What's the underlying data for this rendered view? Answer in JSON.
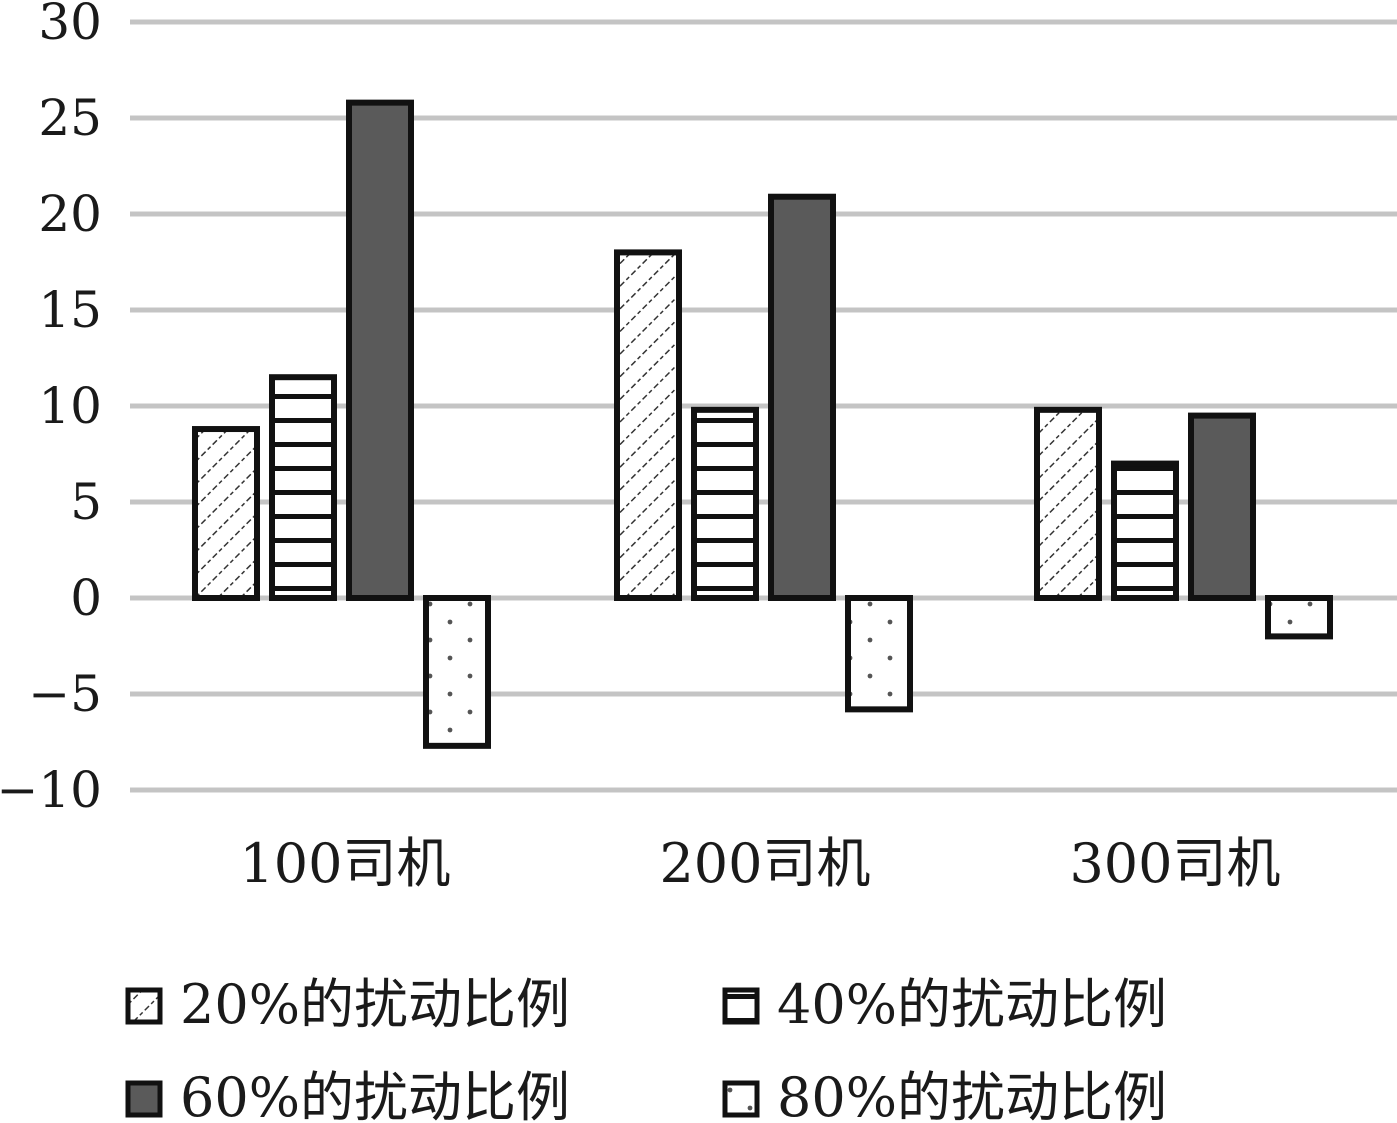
{
  "chart_data": {
    "type": "bar",
    "categories": [
      "100司机",
      "200司机",
      "300司机"
    ],
    "series": [
      {
        "name": "20%的扰动比例",
        "values": [
          8.8,
          18.0,
          9.8
        ],
        "pattern": "diagonal"
      },
      {
        "name": "40%的扰动比例",
        "values": [
          11.5,
          9.8,
          7.0
        ],
        "pattern": "horizontal"
      },
      {
        "name": "60%的扰动比例",
        "values": [
          25.8,
          20.9,
          9.5
        ],
        "pattern": "solid"
      },
      {
        "name": "80%的扰动比例",
        "values": [
          -7.7,
          -5.8,
          -2.0
        ],
        "pattern": "dots"
      }
    ],
    "ylim": [
      -10,
      30
    ],
    "yticks": [
      30,
      25,
      20,
      15,
      10,
      5,
      0,
      -5,
      -10
    ],
    "ytick_labels": [
      "30",
      "25",
      "20",
      "15",
      "10",
      "5",
      "0",
      "−5",
      "−10"
    ],
    "grid": true,
    "legend_position": "bottom",
    "colors": {
      "grid": "#c4c4c4",
      "bar_edge": "#111111",
      "solid_fill": "#5a5a5a",
      "background": "#ffffff"
    }
  }
}
